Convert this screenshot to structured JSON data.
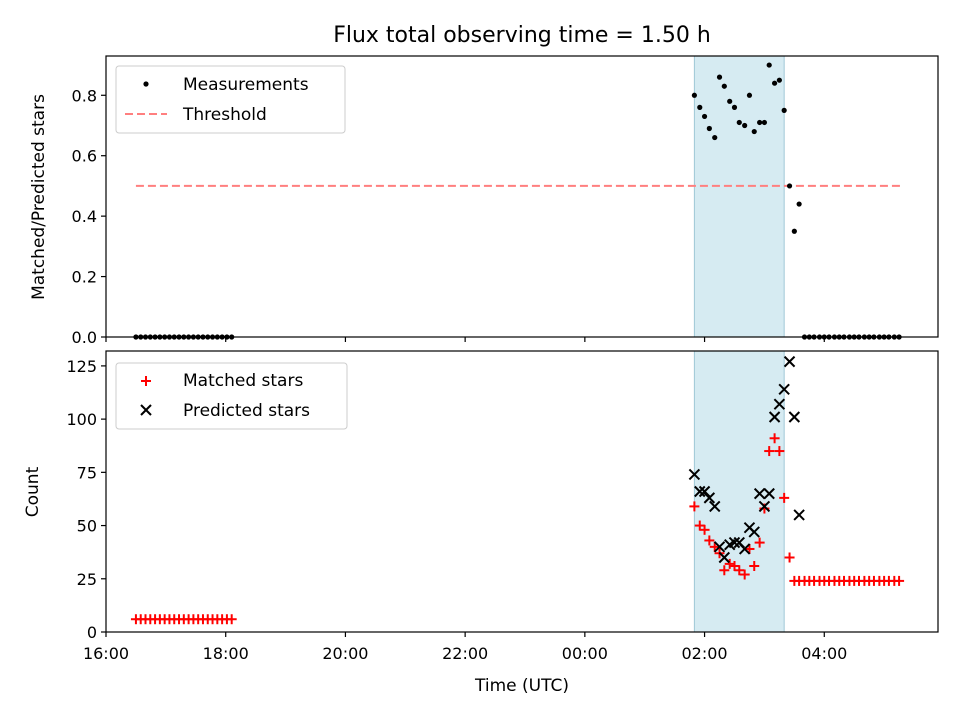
{
  "chart_data": [
    {
      "type": "scatter",
      "title": "Flux total observing time = 1.50 h",
      "ylabel": "Matched/Predicted stars",
      "xlabel": "",
      "xlim": [
        16.0,
        29.9
      ],
      "ylim": [
        0,
        0.93
      ],
      "yticks": [
        0.0,
        0.2,
        0.4,
        0.6,
        0.8
      ],
      "ytick_labels": [
        "0.0",
        "0.2",
        "0.4",
        "0.6",
        "0.8"
      ],
      "shaded_span": [
        25.83,
        27.33
      ],
      "legend": {
        "position": "top-left",
        "entries": [
          "Measurements",
          "Threshold"
        ]
      },
      "threshold": {
        "name": "Threshold",
        "y": 0.5,
        "x_range": [
          16.5,
          29.27
        ],
        "color": "#ff7f7f"
      },
      "series": [
        {
          "name": "Measurements",
          "marker": "dot",
          "color": "#000000",
          "x": [
            16.5,
            16.58,
            16.66,
            16.74,
            16.82,
            16.9,
            16.98,
            17.06,
            17.14,
            17.22,
            17.3,
            17.38,
            17.46,
            17.54,
            17.62,
            17.7,
            17.78,
            17.86,
            17.94,
            18.02,
            18.1,
            25.83,
            25.92,
            26.0,
            26.08,
            26.17,
            26.25,
            26.33,
            26.42,
            26.5,
            26.58,
            26.67,
            26.75,
            26.83,
            26.92,
            27.0,
            27.08,
            27.17,
            27.25,
            27.33,
            27.42,
            27.5,
            27.58,
            27.67,
            27.75,
            27.83,
            27.92,
            28.0,
            28.08,
            28.17,
            28.25,
            28.33,
            28.42,
            28.5,
            28.58,
            28.67,
            28.75,
            28.83,
            28.92,
            29.0,
            29.08,
            29.17,
            29.25
          ],
          "y": [
            0,
            0,
            0,
            0,
            0,
            0,
            0,
            0,
            0,
            0,
            0,
            0,
            0,
            0,
            0,
            0,
            0,
            0,
            0,
            0,
            0,
            0.8,
            0.76,
            0.73,
            0.69,
            0.66,
            0.86,
            0.83,
            0.78,
            0.76,
            0.71,
            0.7,
            0.8,
            0.68,
            0.71,
            0.71,
            0.9,
            0.84,
            0.85,
            0.75,
            0.5,
            0.35,
            0.44,
            0,
            0,
            0,
            0,
            0,
            0,
            0,
            0,
            0,
            0,
            0,
            0,
            0,
            0,
            0,
            0,
            0,
            0,
            0,
            0
          ]
        }
      ]
    },
    {
      "type": "scatter",
      "title": "",
      "ylabel": "Count",
      "xlabel": "Time (UTC)",
      "xlim": [
        16.0,
        29.9
      ],
      "ylim": [
        0,
        132
      ],
      "xticks": [
        16,
        18,
        20,
        22,
        24,
        26,
        28
      ],
      "xtick_labels": [
        "16:00",
        "18:00",
        "20:00",
        "22:00",
        "00:00",
        "02:00",
        "04:00"
      ],
      "yticks": [
        0,
        25,
        50,
        75,
        100,
        125
      ],
      "ytick_labels": [
        "0",
        "25",
        "50",
        "75",
        "100",
        "125"
      ],
      "shaded_span": [
        25.83,
        27.33
      ],
      "legend": {
        "position": "top-left",
        "entries": [
          "Matched stars",
          "Predicted stars"
        ]
      },
      "series": [
        {
          "name": "Matched stars",
          "marker": "plus",
          "color": "#ff0000",
          "x": [
            16.5,
            16.58,
            16.66,
            16.74,
            16.82,
            16.9,
            16.98,
            17.06,
            17.14,
            17.22,
            17.3,
            17.38,
            17.46,
            17.54,
            17.62,
            17.7,
            17.78,
            17.86,
            17.94,
            18.02,
            18.1,
            25.83,
            25.92,
            26.0,
            26.08,
            26.17,
            26.25,
            26.33,
            26.42,
            26.5,
            26.58,
            26.67,
            26.75,
            26.83,
            26.92,
            27.0,
            27.08,
            27.17,
            27.25,
            27.33,
            27.42,
            27.5,
            27.58,
            27.67,
            27.75,
            27.83,
            27.92,
            28.0,
            28.08,
            28.17,
            28.25,
            28.33,
            28.42,
            28.5,
            28.58,
            28.67,
            28.75,
            28.83,
            28.92,
            29.0,
            29.08,
            29.17,
            29.25
          ],
          "y": [
            6,
            6,
            6,
            6,
            6,
            6,
            6,
            6,
            6,
            6,
            6,
            6,
            6,
            6,
            6,
            6,
            6,
            6,
            6,
            6,
            6,
            59,
            50,
            48,
            43,
            40,
            37,
            29,
            32,
            31,
            29,
            27,
            39,
            31,
            42,
            58,
            85,
            91,
            85,
            63,
            35,
            24,
            24,
            24,
            24,
            24,
            24,
            24,
            24,
            24,
            24,
            24,
            24,
            24,
            24,
            24,
            24,
            24,
            24,
            24,
            24,
            24,
            24
          ]
        },
        {
          "name": "Predicted stars",
          "marker": "x",
          "color": "#000000",
          "x": [
            25.83,
            25.92,
            26.0,
            26.08,
            26.17,
            26.25,
            26.33,
            26.42,
            26.5,
            26.58,
            26.67,
            26.75,
            26.83,
            26.92,
            27.0,
            27.08,
            27.17,
            27.25,
            27.33,
            27.42,
            27.5,
            27.58
          ],
          "y": [
            74,
            66,
            66,
            63,
            59,
            40,
            35,
            41,
            42,
            42,
            39,
            49,
            47,
            65,
            59,
            65,
            101,
            107,
            114,
            127,
            101,
            55
          ]
        }
      ]
    }
  ]
}
